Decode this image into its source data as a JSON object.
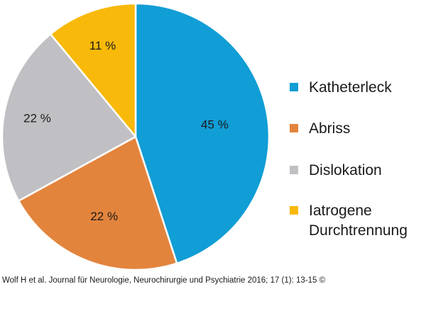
{
  "chart_data": {
    "type": "pie",
    "categories": [
      "Katheterleck",
      "Abriss",
      "Dislokation",
      "Iatrogene Durchtrennung"
    ],
    "values": [
      45,
      22,
      22,
      11
    ],
    "slice_labels": [
      "45 %",
      "22 %",
      "22 %",
      "11 %"
    ],
    "colors": [
      "#119dd5",
      "#e3843d",
      "#c0c0c4",
      "#f9b90a"
    ],
    "legend": {
      "position": "right",
      "items": [
        {
          "lines": [
            "Katheterleck"
          ],
          "color": "#119dd5"
        },
        {
          "lines": [
            "Abriss"
          ],
          "color": "#e3843d"
        },
        {
          "lines": [
            "Dislokation"
          ],
          "color": "#c0c0c4"
        },
        {
          "lines": [
            "Iatrogene",
            "Durchtrennung"
          ],
          "color": "#f9b90a"
        }
      ]
    },
    "title": ""
  },
  "citation": "Wolf H et al. Journal für Neurologie, Neurochirurgie und Psychiatrie 2016; 17 (1): 13-15 ©"
}
